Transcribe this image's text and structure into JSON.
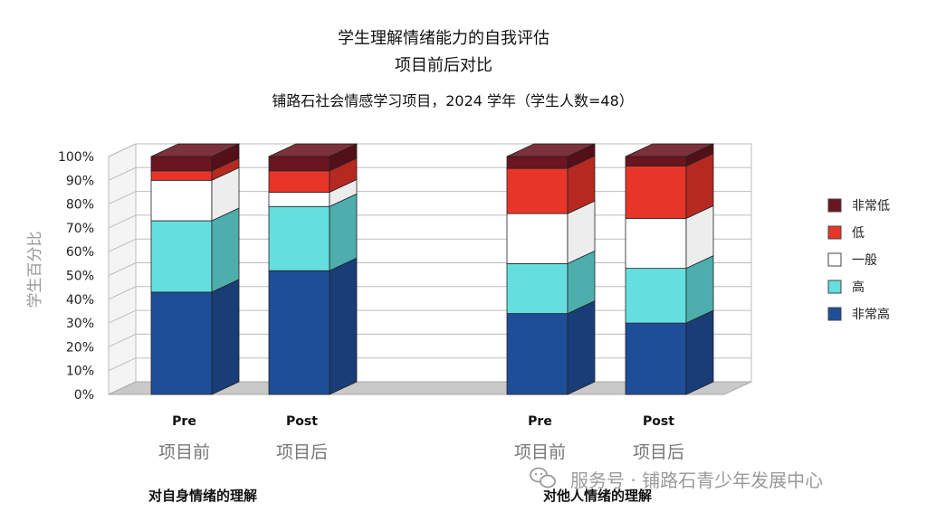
{
  "chart_data": {
    "type": "bar",
    "stacked": true,
    "title": "学生理解情绪能力的自我评估",
    "title_line2": "项目前后对比",
    "subtitle": "铺路石社会情感学习项目，2024 学年（学生人数=48）",
    "ylabel": "学生百分比",
    "ylim": [
      0,
      100
    ],
    "yticks": [
      "0%",
      "10%",
      "20%",
      "30%",
      "40%",
      "50%",
      "60%",
      "70%",
      "80%",
      "90%",
      "100%"
    ],
    "grid": true,
    "legend_position": "right",
    "categories": [
      {
        "label": "Pre",
        "label_cn": "项目前",
        "group": 0
      },
      {
        "label": "Post",
        "label_cn": "项目后",
        "group": 0
      },
      {
        "label": "Pre",
        "label_cn": "项目前",
        "group": 1
      },
      {
        "label": "Post",
        "label_cn": "项目后",
        "group": 1
      }
    ],
    "groups": [
      "对自身情绪的理解",
      "对他人情绪的理解"
    ],
    "series": [
      {
        "name": "非常高",
        "color": "#1f4e99",
        "values": [
          43,
          52,
          34,
          30
        ]
      },
      {
        "name": "高",
        "color": "#64dede",
        "values": [
          30,
          27,
          21,
          23
        ]
      },
      {
        "name": "一般",
        "color": "#ffffff",
        "values": [
          17,
          6,
          21,
          21
        ]
      },
      {
        "name": "低",
        "color": "#e8352a",
        "values": [
          4,
          9,
          19,
          22
        ]
      },
      {
        "name": "非常低",
        "color": "#6b1520",
        "values": [
          6,
          6,
          5,
          4
        ]
      }
    ]
  },
  "watermark": {
    "icon": "wechat-icon",
    "text": "服务号 · 铺路石青少年发展中心"
  }
}
